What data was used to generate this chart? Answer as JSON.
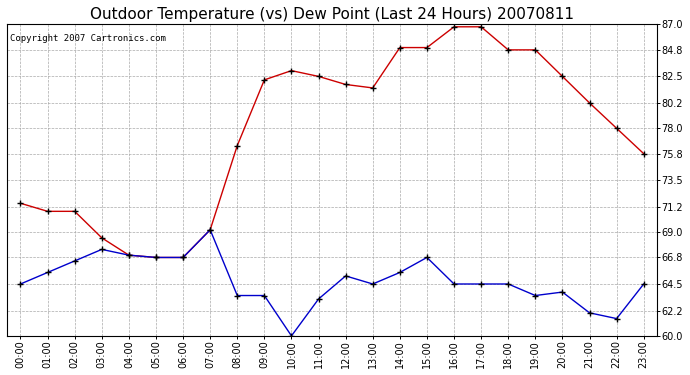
{
  "title": "Outdoor Temperature (vs) Dew Point (Last 24 Hours) 20070811",
  "copyright_text": "Copyright 2007 Cartronics.com",
  "x_labels": [
    "00:00",
    "01:00",
    "02:00",
    "03:00",
    "04:00",
    "05:00",
    "06:00",
    "07:00",
    "08:00",
    "09:00",
    "10:00",
    "11:00",
    "12:00",
    "13:00",
    "14:00",
    "15:00",
    "16:00",
    "17:00",
    "18:00",
    "19:00",
    "20:00",
    "21:00",
    "22:00",
    "23:00"
  ],
  "temp_data": [
    71.5,
    70.8,
    70.8,
    68.5,
    67.0,
    66.8,
    66.8,
    69.2,
    76.5,
    82.2,
    83.0,
    82.5,
    81.8,
    81.5,
    85.0,
    85.0,
    86.8,
    86.8,
    84.8,
    84.8,
    82.5,
    80.2,
    78.0,
    75.8
  ],
  "dew_data": [
    64.5,
    65.5,
    66.5,
    67.5,
    67.0,
    66.8,
    66.8,
    69.2,
    63.5,
    63.5,
    60.0,
    63.2,
    65.2,
    64.5,
    65.5,
    66.8,
    64.5,
    64.5,
    64.5,
    63.5,
    63.8,
    62.0,
    61.5,
    64.5
  ],
  "temp_color": "#cc0000",
  "dew_color": "#0000cc",
  "ylim": [
    60.0,
    87.0
  ],
  "yticks": [
    60.0,
    62.2,
    64.5,
    66.8,
    69.0,
    71.2,
    73.5,
    75.8,
    78.0,
    80.2,
    82.5,
    84.8,
    87.0
  ],
  "background_color": "#ffffff",
  "plot_bg_color": "#ffffff",
  "grid_color": "#aaaaaa",
  "title_fontsize": 11,
  "copyright_fontsize": 6.5,
  "tick_fontsize": 7
}
